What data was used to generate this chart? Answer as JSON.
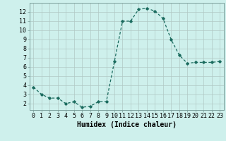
{
  "x": [
    0,
    1,
    2,
    3,
    4,
    5,
    6,
    7,
    8,
    9,
    10,
    11,
    12,
    13,
    14,
    15,
    16,
    17,
    18,
    19,
    20,
    21,
    22,
    23
  ],
  "y": [
    3.8,
    3.0,
    2.6,
    2.6,
    2.0,
    2.2,
    1.6,
    1.7,
    2.2,
    2.2,
    6.6,
    11.0,
    11.0,
    12.3,
    12.4,
    12.1,
    11.3,
    9.0,
    7.3,
    6.4,
    6.5,
    6.5,
    6.5,
    6.6
  ],
  "line_color": "#1a6b5e",
  "marker": "D",
  "marker_size": 1.8,
  "bg_color": "#cef0ec",
  "grid_color": "#b0c8c4",
  "xlabel": "Humidex (Indice chaleur)",
  "xlabel_fontsize": 7,
  "tick_fontsize": 6,
  "xlim": [
    -0.5,
    23.5
  ],
  "ylim": [
    1.3,
    13.0
  ],
  "yticks": [
    2,
    3,
    4,
    5,
    6,
    7,
    8,
    9,
    10,
    11,
    12
  ],
  "xticks": [
    0,
    1,
    2,
    3,
    4,
    5,
    6,
    7,
    8,
    9,
    10,
    11,
    12,
    13,
    14,
    15,
    16,
    17,
    18,
    19,
    20,
    21,
    22,
    23
  ]
}
